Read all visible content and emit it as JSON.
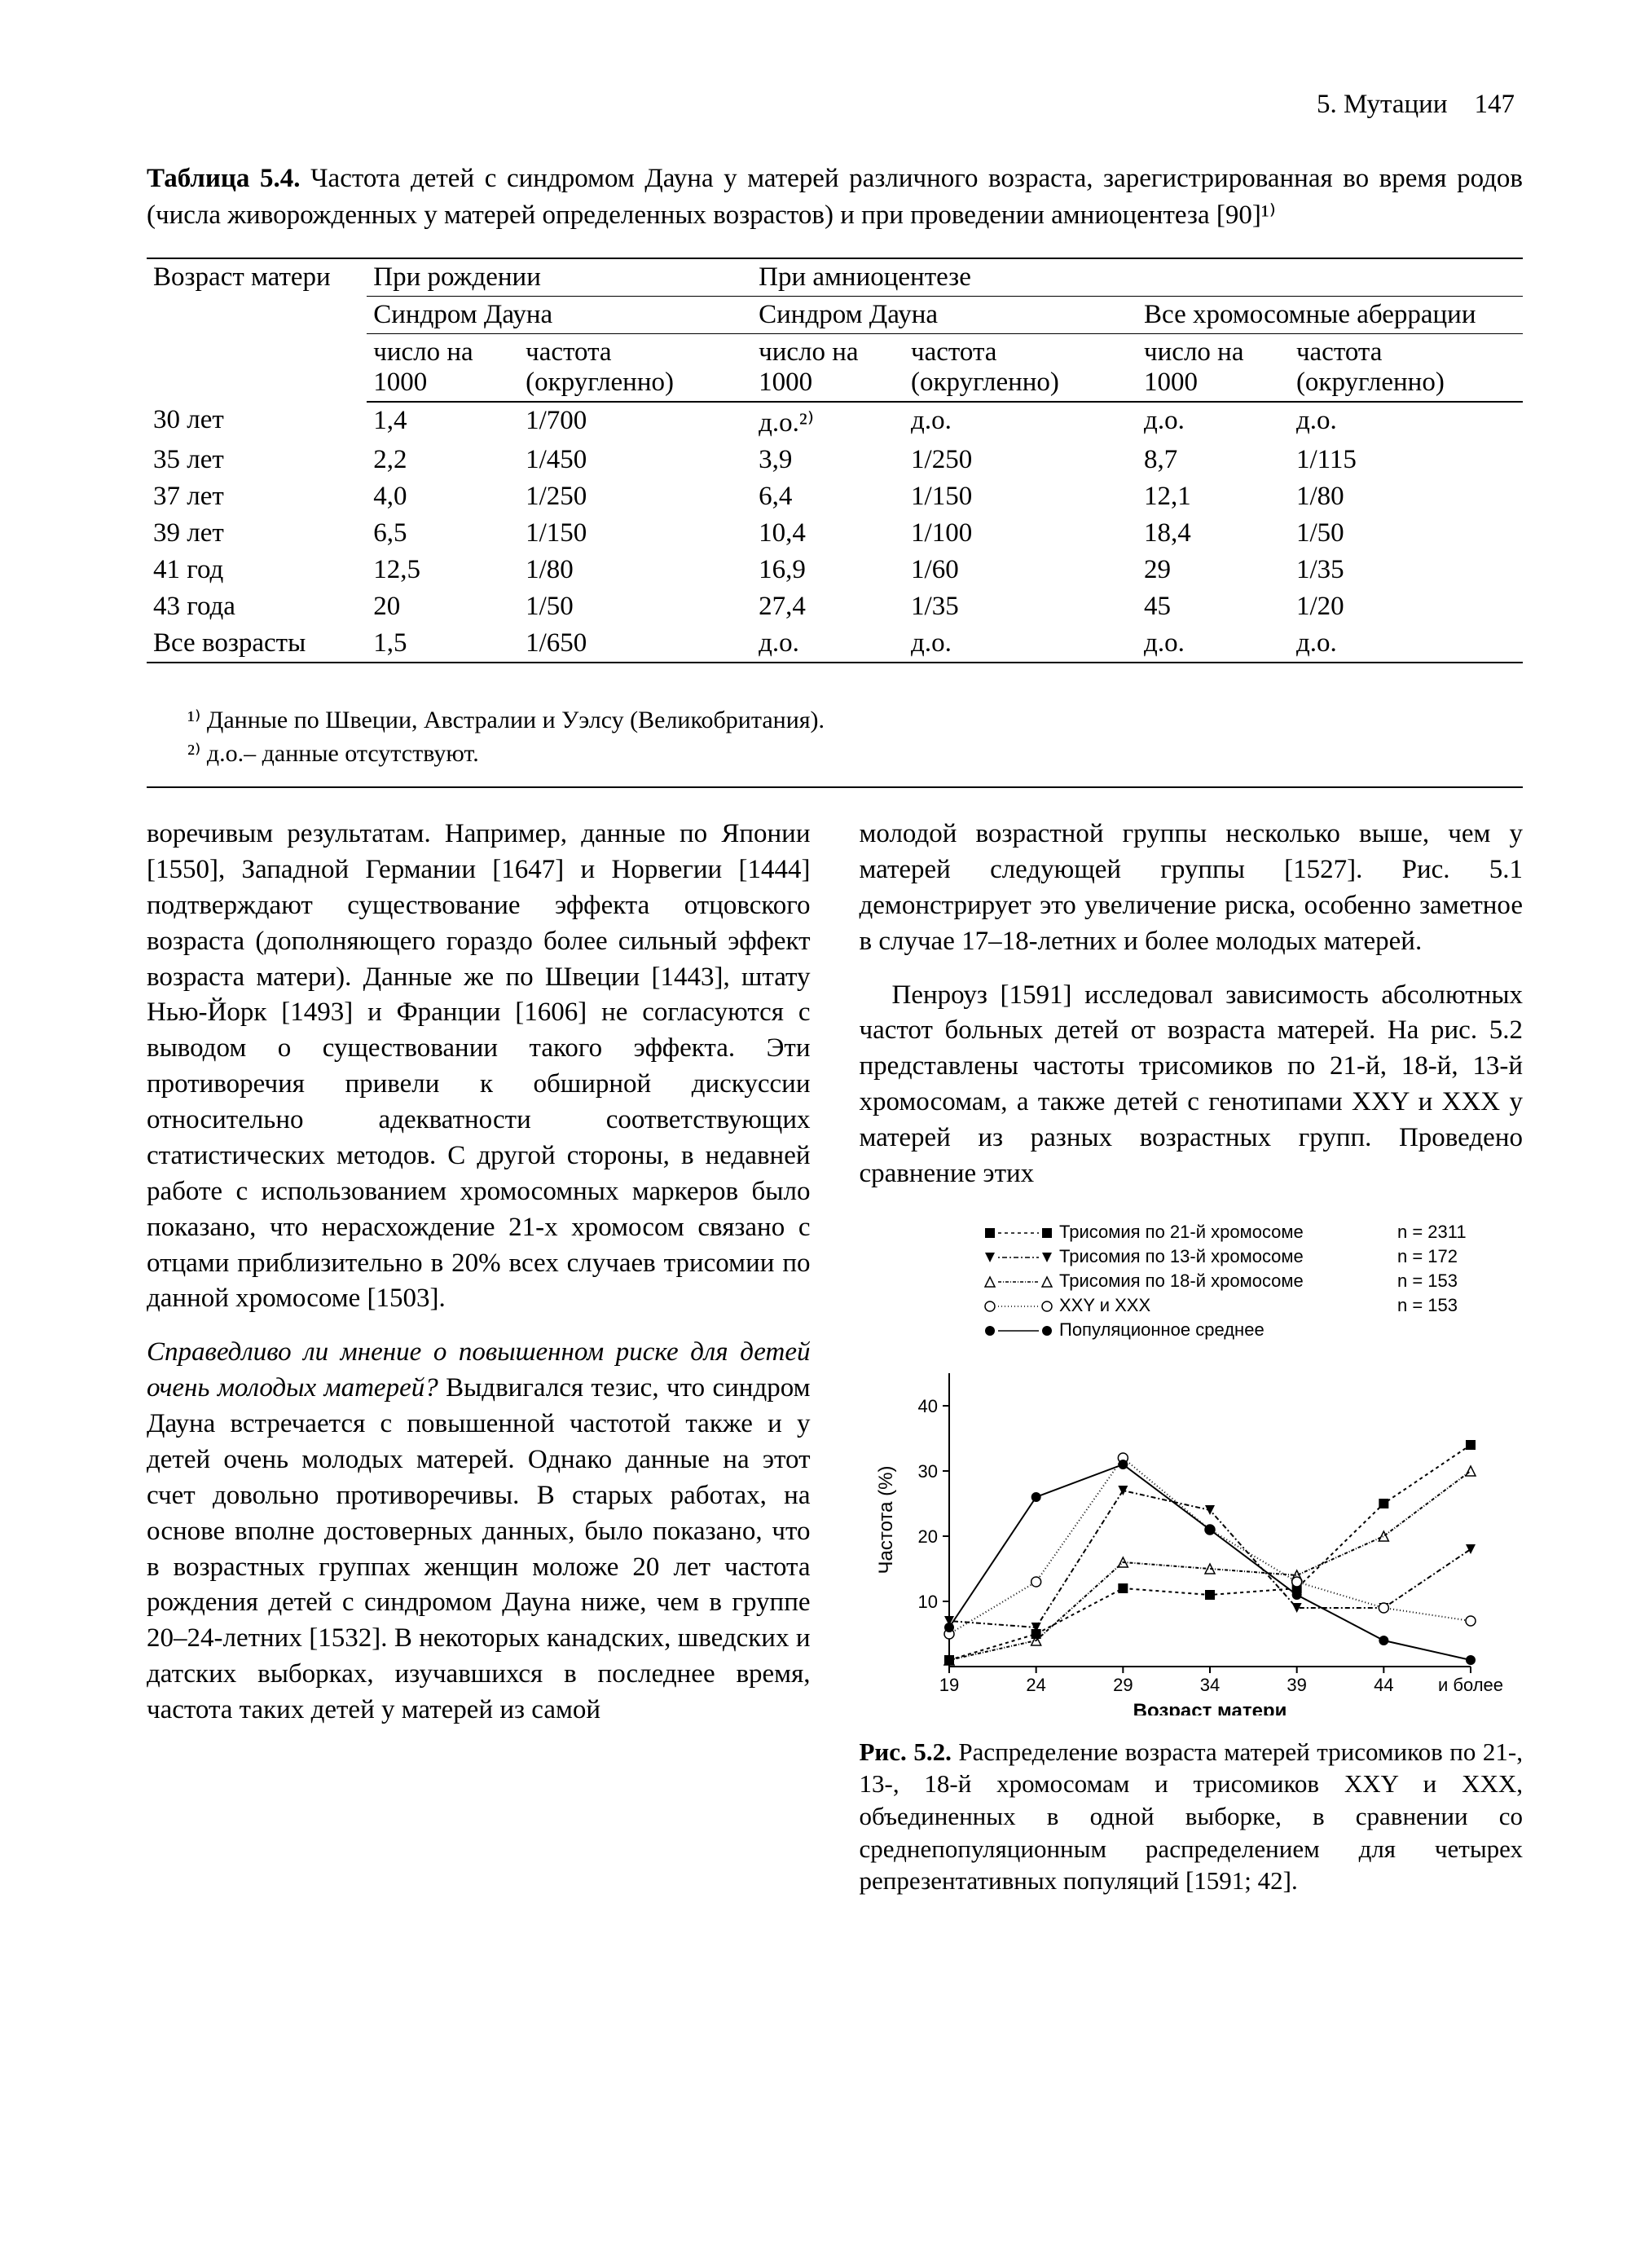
{
  "header": {
    "section": "5. Мутации",
    "page": "147"
  },
  "table": {
    "label": "Таблица 5.4.",
    "caption": "Частота детей с синдромом Дауна у матерей различного возраста, зарегистрированная во время родов (числа живорожденных у матерей определенных возрастов) и при проведении амниоцентеза [90]¹⁾",
    "header_groups": {
      "c0": "Возраст матери",
      "g1": "При рождении",
      "g2": "При амниоцентезе",
      "s1": "Синдром Дауна",
      "s2": "Синдром Дауна",
      "s3": "Все хромосомные аберрации",
      "sub_num": "число на 1000",
      "sub_freq": "частота (округленно)"
    },
    "rows": [
      {
        "age": "30 лет",
        "b_n": "1,4",
        "b_f": "1/700",
        "a_n": "д.о.²⁾",
        "a_f": "д.о.",
        "c_n": "д.о.",
        "c_f": "д.о."
      },
      {
        "age": "35 лет",
        "b_n": "2,2",
        "b_f": "1/450",
        "a_n": "3,9",
        "a_f": "1/250",
        "c_n": "8,7",
        "c_f": "1/115"
      },
      {
        "age": "37 лет",
        "b_n": "4,0",
        "b_f": "1/250",
        "a_n": "6,4",
        "a_f": "1/150",
        "c_n": "12,1",
        "c_f": "1/80"
      },
      {
        "age": "39 лет",
        "b_n": "6,5",
        "b_f": "1/150",
        "a_n": "10,4",
        "a_f": "1/100",
        "c_n": "18,4",
        "c_f": "1/50"
      },
      {
        "age": "41 год",
        "b_n": "12,5",
        "b_f": "1/80",
        "a_n": "16,9",
        "a_f": "1/60",
        "c_n": "29",
        "c_f": "1/35"
      },
      {
        "age": "43 года",
        "b_n": "20",
        "b_f": "1/50",
        "a_n": "27,4",
        "a_f": "1/35",
        "c_n": "45",
        "c_f": "1/20"
      },
      {
        "age": "Все возрасты",
        "b_n": "1,5",
        "b_f": "1/650",
        "a_n": "д.о.",
        "a_f": "д.о.",
        "c_n": "д.о.",
        "c_f": "д.о."
      }
    ],
    "footnotes": [
      "¹⁾ Данные по Швеции, Австралии и Уэлсу (Великобритания).",
      "²⁾ д.о.– данные отсутствуют."
    ]
  },
  "body": {
    "left": {
      "p1": "воречивым результатам. Например, данные по Японии [1550], Западной Германии [1647] и Норвегии [1444] подтверждают существование эффекта отцовского возраста (дополняющего гораздо более сильный эффект возраста матери). Данные же по Швеции [1443], штату Нью-Йорк [1493] и Франции [1606] не согласуются с выводом о существовании такого эффекта. Эти противоречия привели к обширной дискуссии относительно адекватности соответствующих статистических методов. С другой стороны, в недавней работе с использованием хромосомных маркеров было показано, что нерасхождение 21-х хромосом связано с отцами приблизительно в 20% всех случаев трисомии по данной хромосоме [1503].",
      "p2_q": "Справедливо ли мнение о повышенном риске для детей очень молодых матерей?",
      "p2_body": " Выдвигался тезис, что синдром Дауна встречается с повышенной частотой также и у детей очень молодых матерей. Однако данные на этот счет довольно противоречивы. В старых работах, на основе вполне достоверных данных, было показано, что в возрастных группах женщин моложе 20 лет частота рождения детей с синдромом Дауна ниже, чем в группе 20–24-летних [1532]. В некоторых канадских, шведских и датских выборках, изучавшихся в последнее время, частота таких детей у матерей из самой"
    },
    "right": {
      "p1": "молодой возрастной группы несколько выше, чем у матерей следующей группы [1527]. Рис. 5.1 демонстрирует это увеличение риска, особенно заметное в случае 17–18-летних и более молодых матерей.",
      "p2": "Пенроуз [1591] исследовал зависимость абсолютных частот больных детей от возраста матерей. На рис. 5.2 представлены частоты трисомиков по 21-й, 18-й, 13-й хромосомам, а также детей с генотипами XXY и XXX у матерей из разных возрастных групп. Проведено сравнение этих"
    }
  },
  "figure": {
    "type": "line",
    "xlabel": "Возраст матери",
    "ylabel": "Частота (%)",
    "x_ticks": [
      "19",
      "24",
      "29",
      "34",
      "39",
      "44",
      "и более"
    ],
    "y_ticks": [
      10,
      20,
      30,
      40
    ],
    "ylim": [
      0,
      45
    ],
    "legend": [
      {
        "key": "t21",
        "marker": "square",
        "dash": "4 4",
        "label": "Трисомия по 21-й хромосоме",
        "n": "n = 2311"
      },
      {
        "key": "t13",
        "marker": "triangle-down",
        "dash": "2 3 6 3",
        "label": "Трисомия по 13-й хромосоме",
        "n": "n = 172"
      },
      {
        "key": "t18",
        "marker": "triangle-up",
        "dash": "4 2 1 2",
        "label": "Трисомия по 18-й хромосоме",
        "n": "n = 153"
      },
      {
        "key": "xxy",
        "marker": "circle-open",
        "dash": "1 3",
        "label": "XXY и XXX",
        "n": "n = 153"
      },
      {
        "key": "pop",
        "marker": "circle-fill",
        "dash": "",
        "label": "Популяционное среднее",
        "n": ""
      }
    ],
    "colors": {
      "stroke": "#000000",
      "bg": "#ffffff"
    },
    "series": {
      "t21": [
        1,
        5,
        12,
        11,
        12,
        25,
        34
      ],
      "t13": [
        7,
        6,
        27,
        24,
        9,
        9,
        18
      ],
      "t18": [
        1,
        4,
        16,
        15,
        14,
        20,
        30
      ],
      "xxy": [
        5,
        13,
        32,
        21,
        13,
        9,
        7
      ],
      "pop": [
        6,
        26,
        31,
        21,
        11,
        4,
        1
      ]
    },
    "caption_label": "Рис. 5.2.",
    "caption": "Распределение возраста матерей трисомиков по 21-, 13-, 18-й хромосомам и трисомиков XXY и XXX, объединенных в одной выборке, в сравнении со среднепопуляционным распределением для четырех репрезентативных популяций [1591; 42]."
  }
}
